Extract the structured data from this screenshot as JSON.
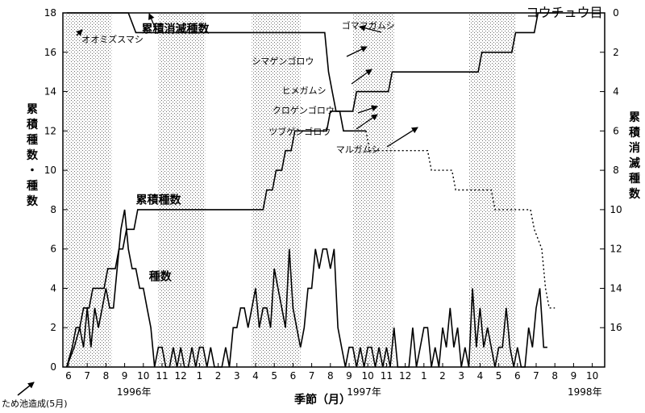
{
  "chart_data": {
    "type": "line",
    "title": "コウチュウ目",
    "xlabel": "季節（月）",
    "ylabel_left": "累積種数・種数",
    "ylabel_right": "累積消滅種数",
    "ylim_left": [
      0,
      18
    ],
    "ylim_right": [
      0,
      18
    ],
    "y_ticks_left": [
      0,
      2,
      4,
      6,
      8,
      10,
      12,
      14,
      16,
      18
    ],
    "y_ticks_right": [
      0,
      2,
      4,
      6,
      8,
      10,
      12,
      14,
      16
    ],
    "x_month_labels": [
      {
        "label": "6",
        "x": 0
      },
      {
        "label": "7",
        "x": 1
      },
      {
        "label": "8",
        "x": 2
      },
      {
        "label": "9",
        "x": 3
      },
      {
        "label": "10",
        "x": 4
      },
      {
        "label": "11",
        "x": 5
      },
      {
        "label": "12",
        "x": 6
      },
      {
        "label": "1",
        "x": 7
      },
      {
        "label": "2",
        "x": 8
      },
      {
        "label": "3",
        "x": 9
      },
      {
        "label": "4",
        "x": 10
      },
      {
        "label": "5",
        "x": 11
      },
      {
        "label": "6",
        "x": 12
      },
      {
        "label": "7",
        "x": 13
      },
      {
        "label": "8",
        "x": 14
      },
      {
        "label": "9",
        "x": 15
      },
      {
        "label": "10",
        "x": 16
      },
      {
        "label": "11",
        "x": 17
      },
      {
        "label": "12",
        "x": 18
      },
      {
        "label": "1",
        "x": 19
      },
      {
        "label": "2",
        "x": 20
      },
      {
        "label": "3",
        "x": 21
      },
      {
        "label": "4",
        "x": 22
      },
      {
        "label": "5",
        "x": 23
      },
      {
        "label": "6",
        "x": 24
      },
      {
        "label": "7",
        "x": 25
      },
      {
        "label": "8",
        "x": 26
      },
      {
        "label": "9",
        "x": 27
      },
      {
        "label": "10",
        "x": 28
      }
    ],
    "year_labels": [
      {
        "label": "1996年",
        "x": 3.5
      },
      {
        "label": "1997年",
        "x": 15.8
      },
      {
        "label": "1998年",
        "x": 27.6
      }
    ],
    "shaded_periods": [
      [
        -0.2,
        2.3
      ],
      [
        4.8,
        7.3
      ],
      [
        9.8,
        12.4
      ],
      [
        15.2,
        17.4
      ],
      [
        21.4,
        23.9
      ]
    ],
    "series": [
      {
        "name": "累積種数",
        "axis": "left",
        "style": "solid",
        "points": [
          [
            -0.1,
            0
          ],
          [
            0.2,
            1
          ],
          [
            0.4,
            2
          ],
          [
            0.6,
            2
          ],
          [
            0.8,
            3
          ],
          [
            1.1,
            3
          ],
          [
            1.3,
            4
          ],
          [
            1.9,
            4
          ],
          [
            2.1,
            5
          ],
          [
            2.5,
            5
          ],
          [
            2.7,
            6
          ],
          [
            2.9,
            6
          ],
          [
            3.1,
            7
          ],
          [
            3.5,
            7
          ],
          [
            3.7,
            8
          ],
          [
            10.4,
            8
          ],
          [
            10.6,
            9
          ],
          [
            10.9,
            9
          ],
          [
            11.1,
            10
          ],
          [
            11.4,
            10
          ],
          [
            11.6,
            11
          ],
          [
            11.9,
            11
          ],
          [
            12.1,
            12
          ],
          [
            13.8,
            12
          ],
          [
            14,
            13
          ],
          [
            15.2,
            13
          ],
          [
            15.4,
            14
          ],
          [
            17.1,
            14
          ],
          [
            17.3,
            15
          ],
          [
            21.9,
            15
          ],
          [
            22.1,
            16
          ],
          [
            23.7,
            16
          ],
          [
            23.9,
            17
          ],
          [
            24.9,
            17
          ],
          [
            25.1,
            18
          ],
          [
            26.2,
            18
          ]
        ]
      },
      {
        "name": "累積消滅種数",
        "axis": "right",
        "style": "solid",
        "points": [
          [
            -0.1,
            0
          ],
          [
            3.2,
            0
          ],
          [
            3.6,
            1
          ],
          [
            13.7,
            1
          ],
          [
            13.9,
            3
          ],
          [
            14.1,
            4
          ],
          [
            14.3,
            5
          ],
          [
            14.5,
            5
          ],
          [
            14.7,
            6
          ],
          [
            15.9,
            6
          ]
        ]
      },
      {
        "name": "累積消滅種数（推定）",
        "axis": "right",
        "style": "dotted",
        "points": [
          [
            15.9,
            6
          ],
          [
            16.1,
            7
          ],
          [
            19.2,
            7
          ],
          [
            19.4,
            8
          ],
          [
            20.5,
            8
          ],
          [
            20.7,
            9
          ],
          [
            22.6,
            9
          ],
          [
            22.8,
            10
          ],
          [
            24.7,
            10
          ],
          [
            24.9,
            11
          ],
          [
            25.3,
            12
          ],
          [
            25.5,
            14
          ],
          [
            25.7,
            15
          ],
          [
            26.0,
            15
          ]
        ]
      },
      {
        "name": "種数",
        "axis": "left",
        "style": "solid",
        "points": [
          [
            -0.1,
            0
          ],
          [
            0.3,
            1
          ],
          [
            0.6,
            2
          ],
          [
            0.8,
            1
          ],
          [
            1.0,
            3
          ],
          [
            1.2,
            1
          ],
          [
            1.4,
            3
          ],
          [
            1.6,
            2
          ],
          [
            1.8,
            3
          ],
          [
            2.0,
            4
          ],
          [
            2.2,
            3
          ],
          [
            2.4,
            3
          ],
          [
            2.6,
            5
          ],
          [
            2.8,
            7
          ],
          [
            3.0,
            8
          ],
          [
            3.2,
            6
          ],
          [
            3.4,
            5
          ],
          [
            3.6,
            5
          ],
          [
            3.8,
            4
          ],
          [
            4.0,
            4
          ],
          [
            4.2,
            3
          ],
          [
            4.4,
            2
          ],
          [
            4.6,
            0
          ],
          [
            4.8,
            1
          ],
          [
            5.0,
            1
          ],
          [
            5.2,
            0
          ],
          [
            5.4,
            0
          ],
          [
            5.6,
            1
          ],
          [
            5.8,
            0
          ],
          [
            6.0,
            1
          ],
          [
            6.2,
            0
          ],
          [
            6.4,
            0
          ],
          [
            6.6,
            1
          ],
          [
            6.8,
            0
          ],
          [
            7.0,
            1
          ],
          [
            7.2,
            1
          ],
          [
            7.4,
            0
          ],
          [
            7.6,
            1
          ],
          [
            7.8,
            0
          ],
          [
            8.0,
            0
          ],
          [
            8.2,
            0
          ],
          [
            8.4,
            1
          ],
          [
            8.6,
            0
          ],
          [
            8.8,
            2
          ],
          [
            9.0,
            2
          ],
          [
            9.2,
            3
          ],
          [
            9.4,
            3
          ],
          [
            9.6,
            2
          ],
          [
            9.8,
            3
          ],
          [
            10.0,
            4
          ],
          [
            10.2,
            2
          ],
          [
            10.4,
            3
          ],
          [
            10.6,
            3
          ],
          [
            10.8,
            2
          ],
          [
            11.0,
            5
          ],
          [
            11.2,
            4
          ],
          [
            11.4,
            3
          ],
          [
            11.6,
            2
          ],
          [
            11.8,
            6
          ],
          [
            12.0,
            3
          ],
          [
            12.2,
            2
          ],
          [
            12.4,
            1
          ],
          [
            12.6,
            2
          ],
          [
            12.8,
            4
          ],
          [
            13.0,
            4
          ],
          [
            13.2,
            6
          ],
          [
            13.4,
            5
          ],
          [
            13.6,
            6
          ],
          [
            13.8,
            6
          ],
          [
            14.0,
            5
          ],
          [
            14.2,
            6
          ],
          [
            14.4,
            2
          ],
          [
            14.6,
            1
          ],
          [
            14.8,
            0
          ],
          [
            15.0,
            1
          ],
          [
            15.2,
            1
          ],
          [
            15.4,
            0
          ],
          [
            15.6,
            1
          ],
          [
            15.8,
            0
          ],
          [
            16.0,
            1
          ],
          [
            16.2,
            1
          ],
          [
            16.4,
            0
          ],
          [
            16.6,
            1
          ],
          [
            16.8,
            0
          ],
          [
            17.0,
            1
          ],
          [
            17.2,
            0
          ],
          [
            17.4,
            2
          ],
          [
            17.6,
            0
          ],
          [
            17.8,
            0
          ],
          [
            18.0,
            0
          ],
          [
            18.2,
            0
          ],
          [
            18.4,
            2
          ],
          [
            18.6,
            0
          ],
          [
            18.8,
            1
          ],
          [
            19.0,
            2
          ],
          [
            19.2,
            2
          ],
          [
            19.4,
            0
          ],
          [
            19.6,
            1
          ],
          [
            19.8,
            0
          ],
          [
            20.0,
            2
          ],
          [
            20.2,
            1
          ],
          [
            20.4,
            3
          ],
          [
            20.6,
            1
          ],
          [
            20.8,
            2
          ],
          [
            21.0,
            0
          ],
          [
            21.2,
            1
          ],
          [
            21.4,
            0
          ],
          [
            21.6,
            4
          ],
          [
            21.8,
            1
          ],
          [
            22.0,
            3
          ],
          [
            22.2,
            1
          ],
          [
            22.4,
            2
          ],
          [
            22.6,
            1
          ],
          [
            22.8,
            0
          ],
          [
            23.0,
            1
          ],
          [
            23.2,
            1
          ],
          [
            23.4,
            3
          ],
          [
            23.6,
            1
          ],
          [
            23.8,
            0
          ],
          [
            24.0,
            1
          ],
          [
            24.2,
            0
          ],
          [
            24.4,
            0
          ],
          [
            24.6,
            2
          ],
          [
            24.8,
            1
          ],
          [
            25.0,
            3
          ],
          [
            25.2,
            4
          ],
          [
            25.4,
            1
          ],
          [
            25.6,
            1
          ]
        ]
      }
    ],
    "series_labels": [
      {
        "text": "累積消滅種数",
        "x": 3.9,
        "y": 17.0
      },
      {
        "text": "累積種数",
        "x": 3.6,
        "y": 8.3
      },
      {
        "text": "種数",
        "x": 4.3,
        "y": 4.4
      }
    ],
    "annotations": [
      {
        "text": "オオミズスマシ",
        "x": 0.7,
        "y": 16.5
      },
      {
        "text": "ゴマフガムシ",
        "x": 14.6,
        "y": 17.2
      },
      {
        "text": "シマゲンゴロウ",
        "x": 9.8,
        "y": 15.4
      },
      {
        "text": "ヒメガムシ",
        "x": 11.4,
        "y": 13.9
      },
      {
        "text": "クロゲンゴロウ",
        "x": 10.9,
        "y": 12.9
      },
      {
        "text": "ツブゲンゴロウ",
        "x": 10.7,
        "y": 11.8
      },
      {
        "text": "マルガムシ",
        "x": 14.3,
        "y": 10.9
      }
    ],
    "construction_note": "ため池造成(5月)"
  }
}
